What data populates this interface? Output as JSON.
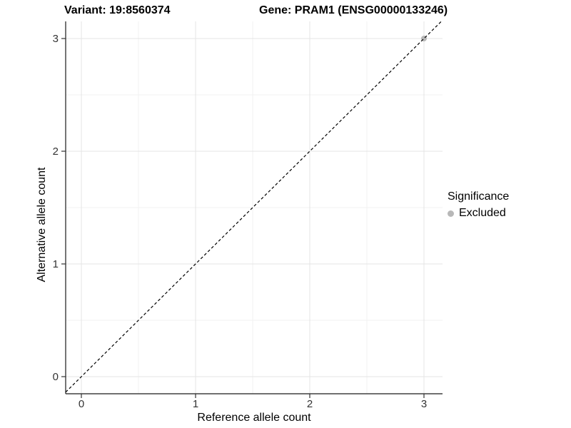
{
  "chart_data": {
    "type": "scatter",
    "titles": {
      "left": "Variant: 19:8560374",
      "right": "Gene: PRAM1 (ENSG00000133246)"
    },
    "xlabel": "Reference allele count",
    "ylabel": "Alternative allele count",
    "xticks": [
      0,
      1,
      2,
      3
    ],
    "yticks": [
      0,
      1,
      2,
      3
    ],
    "minor_ticks": [
      0.5,
      1.5,
      2.5
    ],
    "xlim": [
      -0.14,
      3.16
    ],
    "ylim": [
      -0.15,
      3.15
    ],
    "grid": "major and minor gridlines on white panel",
    "points": [
      {
        "x": 3,
        "y": 3,
        "significance": "Excluded",
        "color": "#b8b8b8"
      }
    ],
    "reference_line": {
      "type": "identity y=x",
      "style": "dashed",
      "color": "#000000"
    },
    "legend": {
      "title": "Significance",
      "position": "right",
      "items": [
        {
          "label": "Excluded",
          "color": "#b8b8b8",
          "marker": "circle"
        }
      ]
    },
    "colors": {
      "grid_major": "#e4e4e4",
      "grid_minor": "#f2f2f2",
      "axis_line": "#1a1a1a",
      "tick_mark": "#333333",
      "tick_label": "#333333",
      "background": "#ffffff"
    }
  }
}
